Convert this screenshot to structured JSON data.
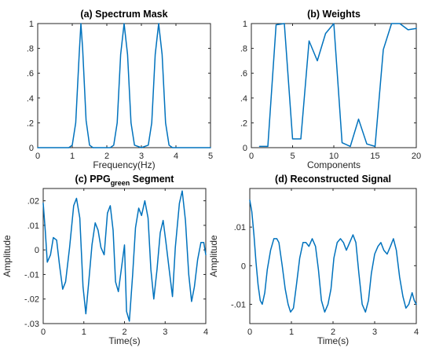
{
  "chart_data": [
    {
      "type": "line",
      "title_prefix": "(a) ",
      "title": "Spectrum Mask",
      "xlabel": "Frequency(Hz)",
      "ylabel": "",
      "xlim": [
        0,
        5
      ],
      "ylim": [
        0,
        1
      ],
      "xticks": [
        0,
        1,
        2,
        3,
        4,
        5
      ],
      "yticks": [
        0,
        0.2,
        0.4,
        0.6,
        0.8,
        1
      ],
      "series": [
        {
          "x": [
            0,
            0.5,
            0.9,
            1.0,
            1.1,
            1.2,
            1.25,
            1.3,
            1.4,
            1.5,
            1.6,
            1.7,
            1.9,
            2.1,
            2.2,
            2.3,
            2.4,
            2.5,
            2.6,
            2.7,
            2.8,
            3.0,
            3.2,
            3.3,
            3.4,
            3.5,
            3.6,
            3.7,
            3.8,
            3.9,
            4.0,
            4.5,
            5.0
          ],
          "y": [
            0,
            0,
            0,
            0.02,
            0.2,
            0.75,
            1.0,
            0.8,
            0.22,
            0.02,
            0,
            0,
            0,
            0,
            0.02,
            0.2,
            0.75,
            1.0,
            0.75,
            0.2,
            0.02,
            0,
            0.02,
            0.2,
            0.75,
            1.0,
            0.75,
            0.2,
            0.02,
            0,
            0,
            0,
            0
          ]
        }
      ]
    },
    {
      "type": "line",
      "title_prefix": "(b) ",
      "title": "Weights",
      "xlabel": "Components",
      "ylabel": "",
      "xlim": [
        0,
        20
      ],
      "ylim": [
        0,
        1
      ],
      "xticks": [
        0,
        5,
        10,
        15,
        20
      ],
      "yticks": [
        0,
        0.2,
        0.4,
        0.6,
        0.8,
        1
      ],
      "series": [
        {
          "x": [
            1,
            2,
            3,
            4,
            5,
            6,
            7,
            8,
            9,
            10,
            11,
            12,
            13,
            14,
            15,
            16,
            17,
            18,
            19,
            20
          ],
          "y": [
            0.01,
            0.01,
            0.99,
            1.0,
            0.07,
            0.07,
            0.86,
            0.7,
            0.92,
            1.0,
            0.04,
            0.01,
            0.23,
            0.03,
            0.01,
            0.79,
            1.0,
            1.0,
            0.95,
            0.96
          ]
        }
      ]
    },
    {
      "type": "line",
      "title_prefix": "(c) ",
      "title": "PPG",
      "title_subscript": "green",
      "title_suffix": " Segment",
      "xlabel": "Time(s)",
      "ylabel": "Amplitude",
      "xlim": [
        0,
        4
      ],
      "ylim": [
        -0.03,
        0.025
      ],
      "xticks": [
        0,
        1,
        2,
        3,
        4
      ],
      "yticks": [
        -0.03,
        -0.02,
        -0.01,
        0,
        0.01,
        0.02
      ],
      "series": [
        {
          "x": [
            0,
            0.05,
            0.1,
            0.18,
            0.25,
            0.33,
            0.4,
            0.48,
            0.55,
            0.65,
            0.75,
            0.82,
            0.9,
            0.98,
            1.05,
            1.12,
            1.2,
            1.28,
            1.35,
            1.42,
            1.5,
            1.58,
            1.65,
            1.72,
            1.78,
            1.85,
            1.92,
            2.0,
            2.05,
            2.12,
            2.2,
            2.27,
            2.35,
            2.42,
            2.5,
            2.58,
            2.65,
            2.72,
            2.8,
            2.88,
            2.95,
            3.02,
            3.1,
            3.18,
            3.25,
            3.35,
            3.42,
            3.5,
            3.58,
            3.65,
            3.72,
            3.8,
            3.88,
            3.95,
            4.0
          ],
          "y": [
            0.019,
            0.008,
            -0.005,
            -0.002,
            0.005,
            0.004,
            -0.006,
            -0.016,
            -0.013,
            0.001,
            0.018,
            0.021,
            0.013,
            -0.015,
            -0.026,
            -0.013,
            0.002,
            0.011,
            0.008,
            0.001,
            -0.002,
            0.015,
            0.018,
            0.008,
            -0.013,
            -0.017,
            -0.008,
            0.002,
            -0.025,
            -0.029,
            -0.01,
            0.009,
            0.017,
            0.014,
            0.02,
            0.013,
            -0.008,
            -0.02,
            -0.008,
            0.007,
            0.012,
            0.003,
            -0.008,
            -0.019,
            0.001,
            0.019,
            0.024,
            0.012,
            -0.01,
            -0.021,
            -0.015,
            -0.004,
            0.003,
            0.003,
            -0.002
          ]
        }
      ]
    },
    {
      "type": "line",
      "title_prefix": "(d) ",
      "title": "Reconstructed Signal",
      "xlabel": "Time(s)",
      "ylabel": "Amplitude",
      "xlim": [
        0,
        4
      ],
      "ylim": [
        -0.015,
        0.02
      ],
      "xticks": [
        0,
        1,
        2,
        3,
        4
      ],
      "yticks": [
        -0.01,
        0,
        0.01
      ],
      "series": [
        {
          "x": [
            0,
            0.05,
            0.1,
            0.15,
            0.2,
            0.25,
            0.3,
            0.36,
            0.42,
            0.5,
            0.58,
            0.65,
            0.7,
            0.78,
            0.85,
            0.92,
            0.98,
            1.05,
            1.12,
            1.2,
            1.28,
            1.35,
            1.42,
            1.5,
            1.58,
            1.65,
            1.72,
            1.8,
            1.88,
            1.95,
            2.02,
            2.1,
            2.18,
            2.25,
            2.32,
            2.4,
            2.48,
            2.55,
            2.62,
            2.7,
            2.78,
            2.85,
            2.92,
            3.0,
            3.08,
            3.15,
            3.22,
            3.3,
            3.38,
            3.45,
            3.52,
            3.6,
            3.68,
            3.75,
            3.82,
            3.9,
            3.95,
            4.0
          ],
          "y": [
            0.017,
            0.014,
            0.008,
            0.001,
            -0.005,
            -0.009,
            -0.01,
            -0.007,
            -0.001,
            0.004,
            0.007,
            0.007,
            0.006,
            0.0,
            -0.006,
            -0.01,
            -0.012,
            -0.011,
            -0.005,
            0.002,
            0.006,
            0.006,
            0.005,
            0.007,
            0.005,
            -0.001,
            -0.009,
            -0.012,
            -0.01,
            -0.006,
            0.002,
            0.006,
            0.007,
            0.006,
            0.004,
            0.006,
            0.008,
            0.006,
            -0.002,
            -0.01,
            -0.012,
            -0.009,
            -0.002,
            0.003,
            0.005,
            0.006,
            0.004,
            0.003,
            0.005,
            0.007,
            0.004,
            -0.003,
            -0.008,
            -0.011,
            -0.01,
            -0.007,
            -0.009,
            -0.01
          ]
        }
      ]
    }
  ],
  "colors": {
    "line": "#0072BD",
    "axes": "#262626"
  }
}
